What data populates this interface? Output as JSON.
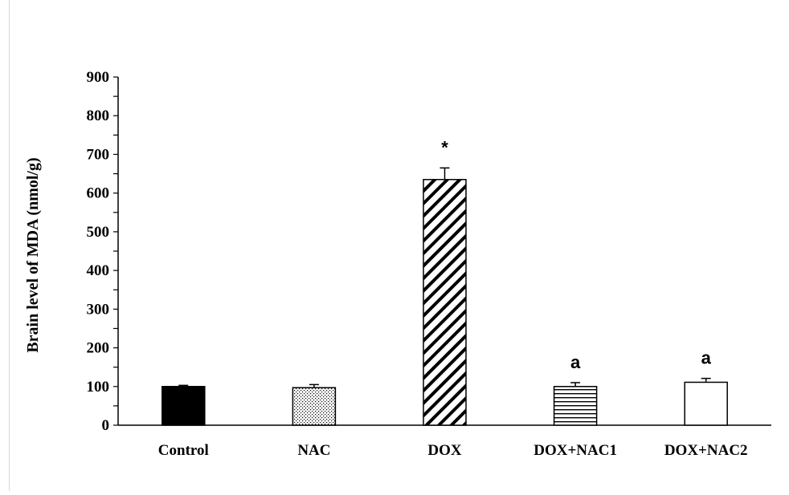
{
  "chart_data": {
    "type": "bar",
    "title": "",
    "xlabel": "",
    "ylabel": "Brain level of MDA (nmol/g)",
    "ylim": [
      0,
      900
    ],
    "yticks": [
      0,
      100,
      200,
      300,
      400,
      500,
      600,
      700,
      800,
      900
    ],
    "yticks_minor_step": 50,
    "grid": false,
    "legend": "none",
    "categories": [
      "Control",
      "NAC",
      "DOX",
      "DOX+NAC1",
      "DOX+NAC2"
    ],
    "values": [
      100,
      97,
      635,
      100,
      111
    ],
    "errors": [
      3,
      8,
      30,
      10,
      10
    ],
    "annotations": [
      "",
      "",
      "*",
      "a",
      "a"
    ],
    "fills": [
      "solid-black",
      "dotted",
      "diagonal-hatch",
      "horizontal-lines",
      "white"
    ]
  }
}
